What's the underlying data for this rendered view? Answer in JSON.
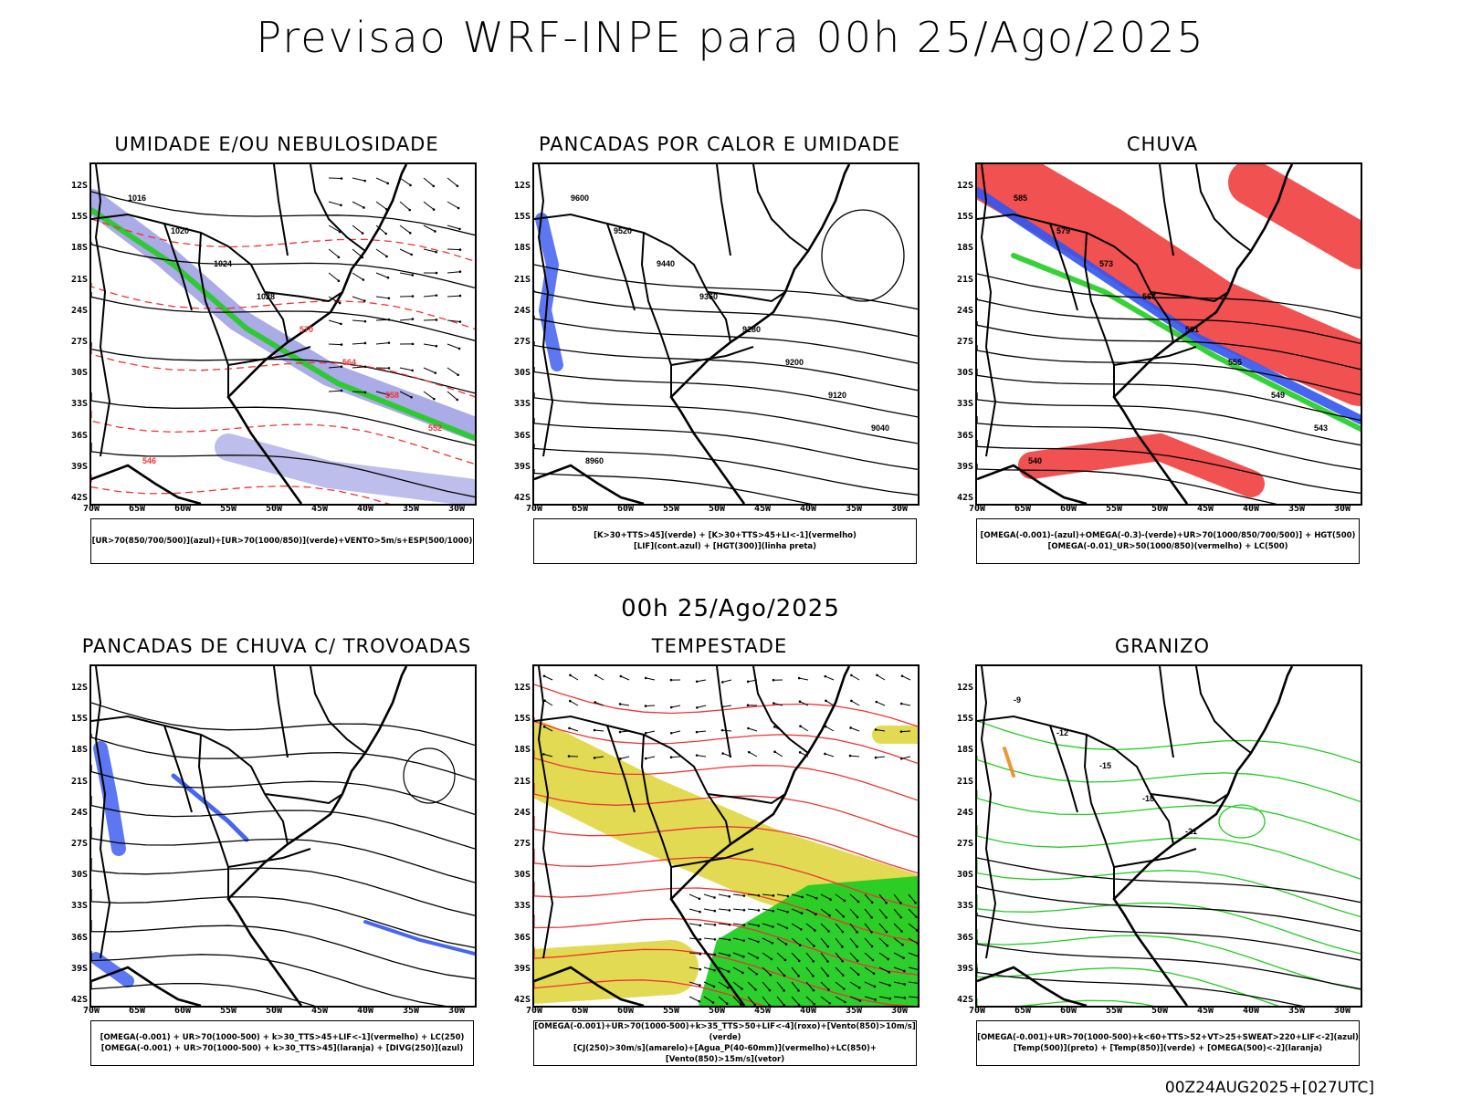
{
  "title": "Previsao WRF-INPE  para 00h 25/Ago/2025",
  "mid_time": "00h 25/Ago/2025",
  "footer_stamp": "00Z24AUG2025+[027UTC]",
  "lat_labels": [
    "12S",
    "15S",
    "18S",
    "21S",
    "24S",
    "27S",
    "30S",
    "33S",
    "36S",
    "39S",
    "42S"
  ],
  "lon_labels": [
    "70W",
    "65W",
    "60W",
    "55W",
    "50W",
    "45W",
    "40W",
    "35W",
    "30W"
  ],
  "panels": [
    {
      "title": "UMIDADE E/OU NEBULOSIDADE",
      "legend": [
        "[UR>70(850/700/500)](azul)+[UR>70(1000/850)](verde)+VENTO>5m/s+ESP(500/1000)"
      ],
      "contour_labels": [
        "1016",
        "1020",
        "1024",
        "1028",
        "570",
        "564",
        "558",
        "552",
        "546"
      ]
    },
    {
      "title": "PANCADAS POR CALOR E UMIDADE",
      "legend": [
        "[K>30+TTS>45](verde) + [K>30+TTS>45+LI<-1](vermelho)",
        "[LIF](cont.azul) + [HGT(300)](linha preta)"
      ],
      "contour_labels": [
        "9600",
        "9520",
        "9440",
        "9360",
        "9280",
        "9200",
        "9120",
        "9040",
        "8960"
      ]
    },
    {
      "title": "CHUVA",
      "legend": [
        "[OMEGA(-0.001)-(azul)+OMEGA(-0.3)-(verde)+UR>70(1000/850/700/500)] + HGT(500)",
        "[OMEGA(-0.01)_UR>50(1000/850)(vermelho) + LC(500)"
      ],
      "contour_labels": [
        "585",
        "579",
        "573",
        "567",
        "561",
        "555",
        "549",
        "543",
        "540"
      ]
    },
    {
      "title": "PANCADAS DE CHUVA C/ TROVOADAS",
      "legend": [
        "[OMEGA(-0.001) + UR>70(1000-500) + k>30_TTS>45+LIF<-1](vermelho) + LC(250)",
        "[OMEGA(-0.001) + UR>70(1000-500) + k>30_TTS>45](laranja) + [DIVG(250)](azul)"
      ],
      "contour_labels": []
    },
    {
      "title": "TEMPESTADE",
      "legend": [
        "[OMEGA(-0.001)+UR>70(1000-500)+k>35_TTS>50+LIF<-4](roxo)+[Vento(850)>10m/s](verde)",
        "[CJ(250)>30m/s](amarelo)+[Agua_P(40-60mm)](vermelho)+LC(850)+[Vento(850)>15m/s](vetor)"
      ],
      "contour_labels": []
    },
    {
      "title": "GRANIZO",
      "legend": [
        "[OMEGA(-0.001)+UR>70(1000-500)+k<60+TTS>52+VT>25+SWEAT>220+LIF<-2](azul)",
        "[Temp(500)](preto) + [Temp(850)](verde) + [OMEGA(500)<-2](laranja)"
      ],
      "contour_labels": [
        "-9",
        "-12",
        "-15",
        "-18",
        "-21"
      ]
    }
  ],
  "colors": {
    "blue": "#3355ee",
    "green": "#22cc22",
    "red": "#ee3333",
    "yellow": "#e0d640",
    "purple": "#8888dd",
    "orange": "#ee8822"
  }
}
